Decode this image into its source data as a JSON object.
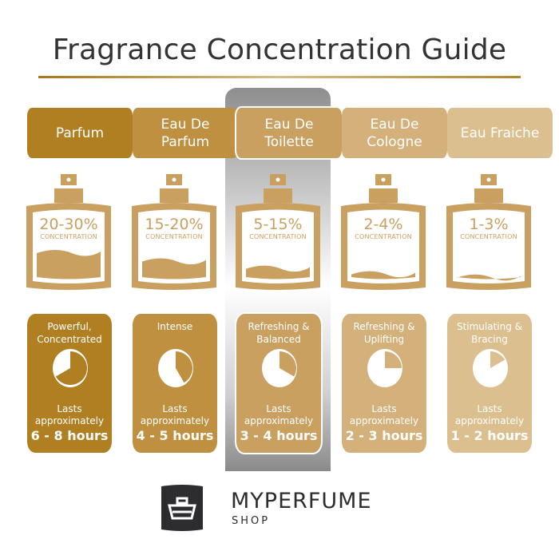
{
  "title": "Fragrance Concentration Guide",
  "concentration_word": "CONCENTRATION",
  "lasts_label": "Lasts approximately",
  "columns": [
    {
      "name": "Parfum",
      "percent": "20-30%",
      "fill_level": 0.5,
      "descriptor": "Powerful, Concentrated",
      "duration": "6 - 8 hours",
      "clock_hours": 8,
      "color": "#b07f22",
      "highlighted": false
    },
    {
      "name": "Eau De Parfum",
      "percent": "15-20%",
      "fill_level": 0.35,
      "descriptor": "Intense",
      "duration": "4 - 5 hours",
      "clock_hours": 5,
      "color": "#bf9040",
      "highlighted": false
    },
    {
      "name": "Eau De Toilette",
      "percent": "5-15%",
      "fill_level": 0.22,
      "descriptor": "Refreshing & Balanced",
      "duration": "3 - 4 hours",
      "clock_hours": 4,
      "color": "#c9a060",
      "highlighted": true
    },
    {
      "name": "Eau De Cologne",
      "percent": "2-4%",
      "fill_level": 0.12,
      "descriptor": "Refreshing & Uplifting",
      "duration": "2 - 3 hours",
      "clock_hours": 3,
      "color": "#d4b07a",
      "highlighted": false
    },
    {
      "name": "Eau Fraiche",
      "percent": "1-3%",
      "fill_level": 0.06,
      "descriptor": "Stimulating & Bracing",
      "duration": "1 - 2 hours",
      "clock_hours": 2,
      "color": "#dcbf8e",
      "highlighted": false
    }
  ],
  "bottle_color": "#c9a060",
  "logo": {
    "brand": "MYPERFUME",
    "sub": "SHOP",
    "color": "#2d2d30"
  }
}
